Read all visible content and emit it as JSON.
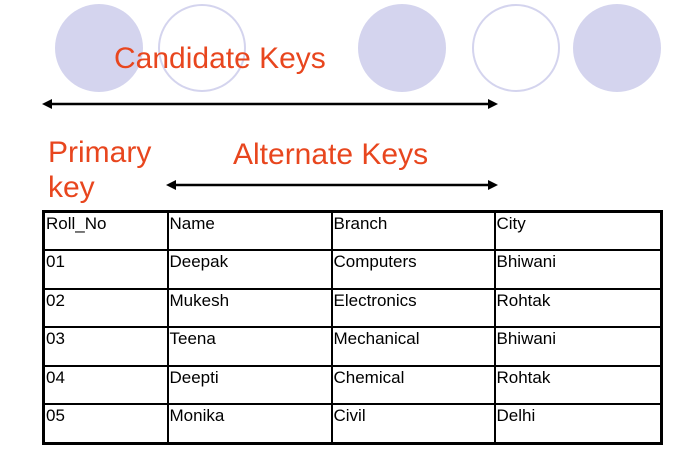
{
  "labels": {
    "candidate_keys": "Candidate Keys",
    "primary_key_line1": "Primary",
    "primary_key_line2": "key",
    "alternate_keys": "Alternate Keys"
  },
  "colors": {
    "label_text": "#e8461e",
    "circle_fill": "#d4d4ee",
    "table_border": "#000000"
  },
  "table": {
    "headers": [
      "Roll_No",
      "Name",
      "Branch",
      "City"
    ],
    "rows": [
      [
        "01",
        "Deepak",
        "Computers",
        "Bhiwani"
      ],
      [
        "02",
        "Mukesh",
        "Electronics",
        "Rohtak"
      ],
      [
        "03",
        "Teena",
        "Mechanical",
        "Bhiwani"
      ],
      [
        "04",
        "Deepti",
        "Chemical",
        "Rohtak"
      ],
      [
        "05",
        "Monika",
        "Civil",
        "Delhi"
      ]
    ]
  }
}
